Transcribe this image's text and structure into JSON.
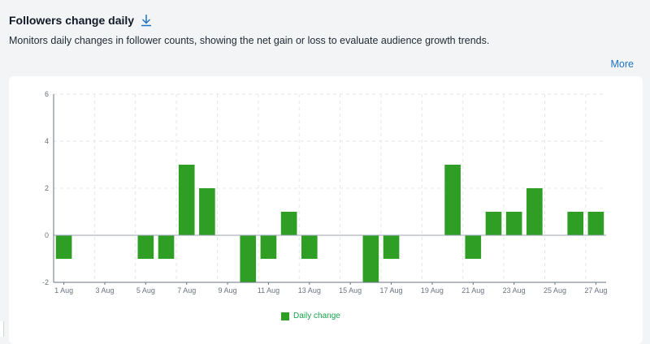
{
  "header": {
    "title": "Followers change daily",
    "description": "Monitors daily changes in follower counts, showing the net gain or loss to evaluate audience growth trends.",
    "more_label": "More"
  },
  "colors": {
    "bar": "#2e9e24",
    "link": "#1d74c5",
    "grid": "#e5e7eb",
    "axis": "#6b7280",
    "zero_line": "#9ca3af"
  },
  "chart_data": {
    "type": "bar",
    "categories": [
      "1 Aug",
      "2 Aug",
      "3 Aug",
      "4 Aug",
      "5 Aug",
      "6 Aug",
      "7 Aug",
      "8 Aug",
      "9 Aug",
      "10 Aug",
      "11 Aug",
      "12 Aug",
      "13 Aug",
      "14 Aug",
      "15 Aug",
      "16 Aug",
      "17 Aug",
      "18 Aug",
      "19 Aug",
      "20 Aug",
      "21 Aug",
      "22 Aug",
      "23 Aug",
      "24 Aug",
      "25 Aug",
      "26 Aug",
      "27 Aug"
    ],
    "tick_labels": [
      "1 Aug",
      "3 Aug",
      "5 Aug",
      "7 Aug",
      "9 Aug",
      "11 Aug",
      "13 Aug",
      "15 Aug",
      "17 Aug",
      "19 Aug",
      "21 Aug",
      "23 Aug",
      "25 Aug",
      "27 Aug"
    ],
    "series": [
      {
        "name": "Daily change",
        "values": [
          -1,
          0,
          0,
          0,
          -1,
          -1,
          3,
          2,
          0,
          -2,
          -1,
          1,
          -1,
          0,
          0,
          -2,
          -1,
          0,
          0,
          3,
          -1,
          1,
          1,
          2,
          0,
          1,
          1
        ]
      }
    ],
    "ylim": [
      -2,
      6
    ],
    "yticks": [
      -2,
      0,
      2,
      4,
      6
    ],
    "grid": true,
    "legend_position": "bottom-center"
  }
}
